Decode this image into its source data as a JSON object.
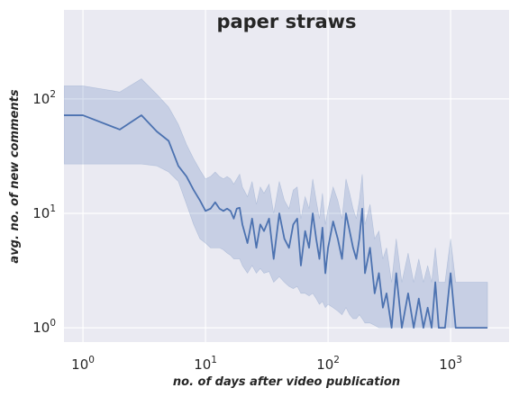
{
  "chart_data": {
    "type": "line",
    "title": "paper straws",
    "xlabel": "no. of days after video publication",
    "ylabel": "avg. no. of new comments",
    "xscale": "log",
    "yscale": "log",
    "xlim": [
      0.7,
      3000
    ],
    "ylim": [
      0.75,
      600
    ],
    "grid": true,
    "legend": "none",
    "x_ticks": [
      {
        "base": "10",
        "exp": "0",
        "value": 1
      },
      {
        "base": "10",
        "exp": "1",
        "value": 10
      },
      {
        "base": "10",
        "exp": "2",
        "value": 100
      },
      {
        "base": "10",
        "exp": "3",
        "value": 1000
      }
    ],
    "y_ticks": [
      {
        "base": "10",
        "exp": "0",
        "value": 1
      },
      {
        "base": "10",
        "exp": "1",
        "value": 10
      },
      {
        "base": "10",
        "exp": "2",
        "value": 100
      }
    ],
    "colors": {
      "plot_background": "#eaeaf2",
      "grid": "#ffffff",
      "line": "#4c72b0",
      "band": "#4c72b0"
    },
    "series": [
      {
        "x": [
          0.7,
          1,
          2,
          3,
          4,
          5,
          6,
          7,
          8,
          9,
          10,
          11,
          12,
          13,
          14,
          15,
          16,
          17,
          18,
          19,
          20,
          22,
          24,
          26,
          28,
          30,
          33,
          36,
          40,
          44,
          48,
          52,
          56,
          60,
          65,
          70,
          75,
          80,
          85,
          90,
          95,
          100,
          110,
          120,
          130,
          140,
          150,
          160,
          170,
          180,
          190,
          200,
          220,
          240,
          260,
          280,
          300,
          330,
          360,
          400,
          450,
          500,
          550,
          600,
          650,
          700,
          750,
          800,
          900,
          1000,
          1100,
          1200,
          1300,
          1400,
          1500,
          1700,
          2000
        ],
        "y": [
          72,
          72,
          54,
          72,
          52,
          43,
          26,
          21,
          16,
          13,
          10.5,
          11,
          12.5,
          11,
          10.5,
          11,
          10.5,
          9,
          11,
          11.2,
          8,
          5.5,
          9,
          5,
          8,
          7,
          9,
          4,
          10,
          6,
          5,
          8,
          9,
          3.5,
          7,
          5,
          10,
          6,
          4,
          7.5,
          3,
          5,
          8.5,
          6,
          4,
          10,
          7,
          5,
          4,
          6,
          11,
          3,
          5,
          2,
          3,
          1.5,
          2,
          1,
          3,
          1,
          2,
          1,
          1.8,
          1,
          1.5,
          1,
          2.5,
          1,
          1,
          3,
          1,
          1,
          1,
          1,
          1,
          1,
          1
        ],
        "ci_lower": [
          27,
          27,
          27,
          27,
          26,
          23,
          19,
          12,
          8,
          6,
          5.5,
          5,
          5,
          5,
          4.8,
          4.5,
          4.3,
          4,
          4,
          4,
          3.5,
          3,
          3.5,
          3,
          3.3,
          3,
          3.1,
          2.5,
          2.8,
          2.5,
          2.3,
          2.2,
          2.3,
          2,
          2,
          1.9,
          2,
          1.8,
          1.6,
          1.7,
          1.5,
          1.6,
          1.5,
          1.4,
          1.3,
          1.5,
          1.3,
          1.2,
          1.2,
          1.3,
          1.2,
          1.1,
          1.1,
          1.05,
          1,
          1,
          1,
          1,
          1,
          1,
          1,
          1,
          1,
          1,
          1,
          1,
          1,
          1,
          1,
          1,
          1,
          1,
          1,
          1,
          1,
          1,
          1
        ],
        "ci_upper": [
          130,
          130,
          115,
          150,
          110,
          85,
          60,
          40,
          30,
          24,
          20,
          21,
          23,
          21,
          20,
          21,
          20,
          18,
          20,
          22,
          17,
          14,
          19,
          12,
          17,
          15,
          18,
          10,
          19,
          13,
          11,
          16,
          17,
          9,
          14,
          11,
          20,
          13,
          9,
          15,
          8,
          11,
          17,
          13,
          9,
          20,
          15,
          11,
          9,
          13,
          22,
          8,
          12,
          6,
          7,
          4,
          5,
          2.5,
          6,
          2.5,
          4.5,
          2.5,
          4,
          2.5,
          3.5,
          2.5,
          5,
          2.5,
          2.5,
          6,
          2.5,
          2.5,
          2.5,
          2.5,
          2.5,
          2.5,
          2.5
        ]
      }
    ]
  }
}
